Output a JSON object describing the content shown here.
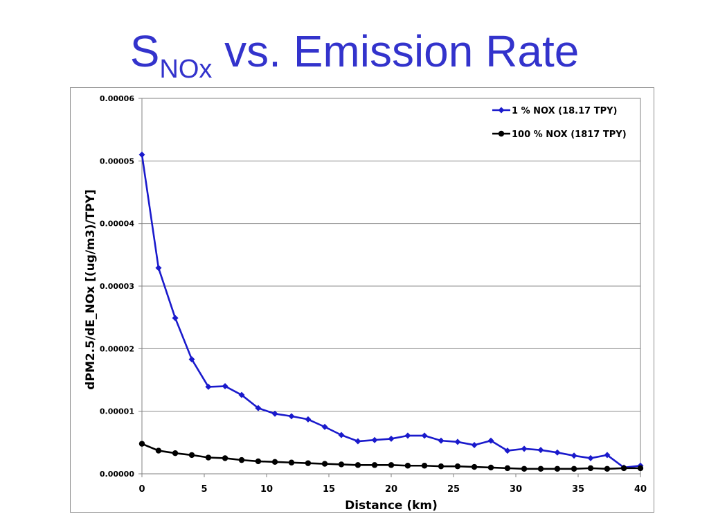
{
  "slide": {
    "title_main": "S",
    "title_sub": "NOx",
    "title_rest": " vs. Emission Rate"
  },
  "chart_data": {
    "type": "line",
    "title": "",
    "xlabel": "Distance (km)",
    "ylabel": "dPM2.5/dE_NOx [(ug/m3)/TPY]",
    "xlim": [
      0,
      40
    ],
    "ylim": [
      0,
      6e-05
    ],
    "xticks": [
      0,
      5,
      10,
      15,
      20,
      25,
      30,
      35,
      40
    ],
    "xtick_labels": [
      "0",
      "5",
      "10",
      "15",
      "20",
      "25",
      "30",
      "35",
      "40"
    ],
    "yticks": [
      0,
      1e-05,
      2e-05,
      3e-05,
      4e-05,
      5e-05,
      6e-05
    ],
    "ytick_labels": [
      "0.00000",
      "0.00001",
      "0.00002",
      "0.00003",
      "0.00004",
      "0.00005",
      "0.00006"
    ],
    "grid": "horizontal",
    "legend_position": "top-right",
    "x": [
      0,
      1.33,
      2.67,
      4,
      5.33,
      6.67,
      8,
      9.33,
      10.67,
      12,
      13.33,
      14.67,
      16,
      17.33,
      18.67,
      20,
      21.33,
      22.67,
      24,
      25.33,
      26.67,
      28,
      29.33,
      30.67,
      32,
      33.33,
      34.67,
      36,
      37.33,
      38.67,
      40
    ],
    "series": [
      {
        "name": "1 % NOX (18.17 TPY)",
        "color": "#1a1acc",
        "marker": "diamond",
        "values": [
          5.1e-05,
          3.29e-05,
          2.49e-05,
          1.83e-05,
          1.39e-05,
          1.4e-05,
          1.26e-05,
          1.05e-05,
          9.6e-06,
          9.2e-06,
          8.7e-06,
          7.5e-06,
          6.2e-06,
          5.2e-06,
          5.4e-06,
          5.6e-06,
          6.1e-06,
          6.1e-06,
          5.3e-06,
          5.1e-06,
          4.6e-06,
          5.3e-06,
          3.7e-06,
          4e-06,
          3.8e-06,
          3.4e-06,
          2.9e-06,
          2.5e-06,
          3e-06,
          1e-06,
          1.3e-06
        ]
      },
      {
        "name": "100 % NOX (1817 TPY)",
        "color": "#000000",
        "marker": "circle",
        "values": [
          4.8e-06,
          3.7e-06,
          3.3e-06,
          3e-06,
          2.6e-06,
          2.5e-06,
          2.2e-06,
          2e-06,
          1.9e-06,
          1.8e-06,
          1.7e-06,
          1.6e-06,
          1.5e-06,
          1.4e-06,
          1.4e-06,
          1.4e-06,
          1.3e-06,
          1.3e-06,
          1.2e-06,
          1.2e-06,
          1.1e-06,
          1e-06,
          9e-07,
          8e-07,
          8e-07,
          8e-07,
          8e-07,
          9e-07,
          8e-07,
          9e-07,
          9e-07
        ]
      }
    ]
  }
}
